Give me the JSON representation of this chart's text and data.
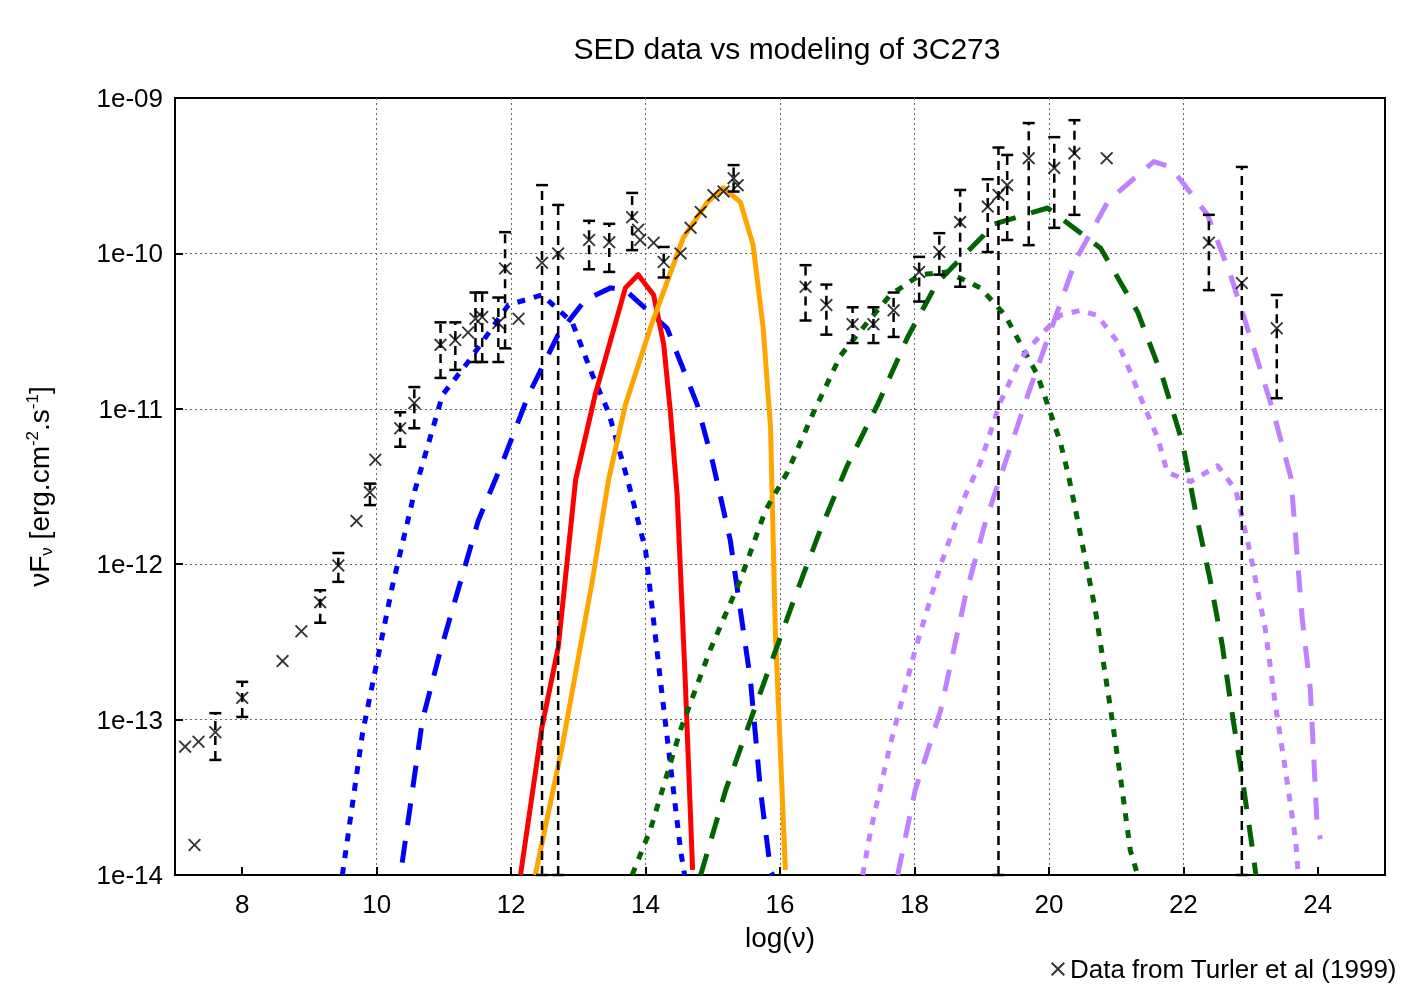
{
  "chart_data": {
    "type": "line",
    "title": "SED data vs modeling of 3C273",
    "xlabel": "log(ν)",
    "ylabel": "νF$_{ν}$ [erg.cm$^{-2}$.s$^{-1}$]",
    "xlim": [
      7,
      25
    ],
    "xticks": [
      8,
      10,
      12,
      14,
      16,
      18,
      20,
      22,
      24
    ],
    "ylim": [
      1e-14,
      1e-09
    ],
    "yticks": [
      {
        "value": 1e-14,
        "label": "1e-14"
      },
      {
        "value": 1e-13,
        "label": "1e-13"
      },
      {
        "value": 1e-12,
        "label": "1e-12"
      },
      {
        "value": 1e-11,
        "label": "1e-11"
      },
      {
        "value": 1e-10,
        "label": "1e-10"
      },
      {
        "value": 1e-09,
        "label": "1e-09"
      }
    ],
    "log": "y",
    "grid": true,
    "legend": "bottom right",
    "series": [
      {
        "type": "scatter",
        "name": "Data from Turler et al (1999)",
        "color": "#000000",
        "marker": "cross",
        "x": [
          7.15,
          7.35,
          7.29,
          7.6,
          8.0,
          8.6,
          8.88,
          9.16,
          9.43,
          9.7,
          9.9,
          9.98,
          10.35,
          10.56,
          10.95,
          11.17,
          11.36,
          11.47,
          11.57,
          11.81,
          11.91,
          12.11,
          12.46,
          12.7,
          13.16,
          13.46,
          13.8,
          13.89,
          13.92,
          14.12,
          14.27,
          14.52,
          14.67,
          14.82,
          15.01,
          15.16,
          15.31,
          15.37,
          16.38,
          16.69,
          17.08,
          17.39,
          17.69,
          18.07,
          18.37,
          18.68,
          19.09,
          19.25,
          19.38,
          19.7,
          20.08,
          20.38,
          20.86,
          22.38,
          22.87,
          23.39
        ],
        "values": [
          6.7e-14,
          7.2e-14,
          1.56e-14,
          8.3e-14,
          1.38e-13,
          2.38e-13,
          3.7e-13,
          5.7e-13,
          9.8e-13,
          1.9e-12,
          2.9e-12,
          4.7e-12,
          7.5e-12,
          1.09e-11,
          2.58e-11,
          2.77e-11,
          3.1e-11,
          3.8e-11,
          3.9e-11,
          3.56e-11,
          8e-11,
          3.8e-11,
          8.7e-11,
          1e-10,
          1.22e-10,
          1.18e-10,
          1.71e-10,
          1.42e-10,
          1.22e-10,
          1.17e-10,
          8.8e-11,
          1e-10,
          1.46e-10,
          1.85e-10,
          2.37e-10,
          2.5e-10,
          3.05e-10,
          2.75e-10,
          6.1e-11,
          4.66e-11,
          3.5e-11,
          3.5e-11,
          4.3e-11,
          7.6e-11,
          1.02e-10,
          1.59e-10,
          2e-10,
          2.38e-10,
          2.75e-10,
          4.1e-10,
          3.55e-10,
          4.4e-10,
          4.1e-10,
          1.17e-10,
          6.45e-11,
          3.3e-11
        ],
        "errors": [
          null,
          null,
          null,
          [
            5.5e-14,
            1.1e-13
          ],
          [
            1.04e-13,
            1.75e-13
          ],
          null,
          null,
          [
            4.2e-13,
            6.8e-13
          ],
          [
            7.7e-13,
            1.18e-12
          ],
          null,
          [
            2.4e-12,
            3.3e-12
          ],
          null,
          [
            5.7e-12,
            9.5e-12
          ],
          [
            7.5e-12,
            1.38e-11
          ],
          [
            1.58e-11,
            3.6e-11
          ],
          [
            1.78e-11,
            3.6e-11
          ],
          null,
          [
            2e-11,
            5.6e-11
          ],
          [
            2e-11,
            5.6e-11
          ],
          [
            2e-11,
            5.2e-11
          ],
          [
            2.45e-11,
            1.37e-10
          ],
          null,
          [
            1e-14,
            2.75e-10
          ],
          [
            1e-14,
            2.05e-10
          ],
          [
            7.9e-11,
            1.62e-10
          ],
          [
            7.6e-11,
            1.55e-10
          ],
          [
            1.05e-10,
            2.45e-10
          ],
          null,
          null,
          null,
          [
            7e-11,
            1.1e-10
          ],
          null,
          null,
          null,
          null,
          null,
          [
            2.5e-10,
            3.7e-10
          ],
          null,
          [
            3.7e-11,
            8.4e-11
          ],
          [
            3e-11,
            6.3e-11
          ],
          [
            2.65e-11,
            4.5e-11
          ],
          [
            2.65e-11,
            4.5e-11
          ],
          [
            2.9e-11,
            5.6e-11
          ],
          [
            4.9e-11,
            9.5e-11
          ],
          [
            7.3e-11,
            1.35e-10
          ],
          [
            6.1e-11,
            2.56e-10
          ],
          [
            1.02e-10,
            3e-10
          ],
          [
            1e-14,
            4.8e-10
          ],
          [
            1.22e-10,
            4.3e-10
          ],
          [
            1.13e-10,
            6.9e-10
          ],
          [
            1.46e-10,
            5.6e-10
          ],
          [
            1.77e-10,
            7.2e-10
          ],
          null,
          [
            5.8e-11,
            1.77e-10
          ],
          [
            1e-14,
            3.6e-10
          ],
          [
            1.17e-11,
            5.4e-11
          ]
        ]
      },
      {
        "color": "#0000ff",
        "line_style": "dotted",
        "x": [
          9.49,
          9.79,
          10.23,
          10.57,
          10.98,
          11.36,
          11.96,
          12.46,
          12.91,
          13.21,
          13.45,
          13.74,
          14.0,
          14.22,
          14.52,
          14.58
        ],
        "values": [
          1e-14,
          8.2e-14,
          7.1e-13,
          3e-12,
          1.23e-11,
          2e-11,
          4.66e-11,
          5.4e-11,
          3.6e-11,
          1.65e-11,
          9.5e-12,
          3.4e-12,
          1.23e-12,
          1.8e-13,
          1.45e-14,
          1e-14
        ]
      },
      {
        "color": "#0000ff",
        "line_style": "dashed",
        "x": [
          10.38,
          10.68,
          10.92,
          11.21,
          11.51,
          11.87,
          12.26,
          12.7,
          13.1,
          13.48,
          13.7,
          14.32,
          14.77,
          15.0,
          15.26,
          15.56,
          15.71,
          15.86,
          15.89
        ],
        "values": [
          1.2e-14,
          9.9e-14,
          2.5e-13,
          6.8e-13,
          1.9e-12,
          4.5e-12,
          1.23e-11,
          3e-11,
          5e-11,
          6e-11,
          5.8e-11,
          3.3e-11,
          1.06e-11,
          4.5e-12,
          1.43e-12,
          1.8e-13,
          3.5e-14,
          1.07e-14,
          1e-14
        ]
      },
      {
        "color": "#ff0000",
        "line_style": "solid",
        "x": [
          12.14,
          12.46,
          12.7,
          12.96,
          13.25,
          13.7,
          13.89,
          14.12,
          14.27,
          14.37,
          14.47,
          14.59,
          14.7
        ],
        "values": [
          1e-14,
          9e-14,
          2.9e-13,
          3.5e-12,
          1.23e-11,
          6e-11,
          7.3e-11,
          5.4e-11,
          2.6e-11,
          9.5e-12,
          2.8e-12,
          1.8e-13,
          1.08e-14
        ]
      },
      {
        "color": "#ffa500",
        "line_style": "solid",
        "x": [
          12.36,
          12.76,
          13.21,
          13.45,
          13.7,
          14.07,
          14.56,
          14.92,
          15.16,
          15.41,
          15.6,
          15.75,
          15.86,
          15.93,
          16.08
        ],
        "values": [
          1e-14,
          6.7e-14,
          7.9e-13,
          3.5e-12,
          1.06e-11,
          3.3e-11,
          1.26e-10,
          2.14e-10,
          2.64e-10,
          2.14e-10,
          1.13e-10,
          3.3e-11,
          7.5e-12,
          3.8e-13,
          1.08e-14
        ]
      },
      {
        "color": "#006400",
        "line_style": "dotted",
        "x": [
          13.8,
          14.07,
          14.52,
          14.96,
          15.41,
          15.78,
          16.11,
          16.5,
          16.9,
          17.3,
          17.64,
          18.09,
          18.49,
          18.98,
          19.35,
          19.58,
          19.83,
          20.02,
          20.17,
          20.29,
          20.4,
          20.69,
          20.92,
          21.07,
          21.21,
          21.32
        ],
        "values": [
          1e-14,
          1.95e-14,
          8.6e-14,
          2.8e-13,
          7.9e-13,
          2.2e-12,
          3.9e-12,
          9.5e-12,
          2.2e-11,
          3.6e-11,
          5.4e-11,
          7.3e-11,
          7.6e-11,
          6e-11,
          4e-11,
          2.6e-11,
          1.65e-11,
          9.5e-12,
          6.1e-12,
          3.75e-12,
          2.2e-12,
          5.1e-13,
          1.15e-13,
          4.1e-14,
          1.45e-14,
          1e-14
        ]
      },
      {
        "color": "#006400",
        "line_style": "dashed",
        "x": [
          14.82,
          15.19,
          15.56,
          16.23,
          16.6,
          17.0,
          17.45,
          17.9,
          18.34,
          19.03,
          19.13,
          19.98,
          20.77,
          21.32,
          21.69,
          21.99,
          22.18,
          22.4,
          22.58,
          22.73,
          22.88,
          23.03,
          23.08
        ],
        "values": [
          1e-14,
          3.5e-14,
          9.9e-14,
          6.3e-13,
          1.66e-12,
          4.3e-12,
          1.06e-11,
          2.9e-11,
          6.5e-11,
          1.31e-10,
          1.52e-10,
          1.96e-10,
          1.08e-10,
          4.2e-11,
          1.6e-11,
          6e-12,
          2.2e-12,
          7.9e-13,
          3e-13,
          1.07e-13,
          4.1e-14,
          1.45e-14,
          1e-14
        ]
      },
      {
        "color": "#c080ff",
        "line_style": "dotted",
        "x": [
          17.23,
          17.35,
          17.64,
          18.01,
          18.39,
          18.76,
          18.98,
          19.28,
          19.58,
          19.88,
          20.17,
          20.47,
          20.72,
          21.02,
          21.21,
          21.41,
          21.62,
          21.76,
          22.11,
          22.51,
          22.78,
          23.0,
          23.22,
          23.37,
          23.52,
          23.67,
          23.71
        ],
        "values": [
          1e-14,
          1.95e-14,
          6.9e-14,
          2.8e-13,
          9.9e-13,
          2.8e-12,
          4.5e-12,
          1.11e-11,
          2.1e-11,
          3e-11,
          4e-11,
          4.3e-11,
          4e-11,
          2.7e-11,
          1.73e-11,
          1.06e-11,
          6.5e-12,
          3.9e-12,
          3.4e-12,
          4.3e-12,
          3e-12,
          1.15e-12,
          3.8e-13,
          1.24e-13,
          4.7e-14,
          1.68e-14,
          1e-14
        ]
      },
      {
        "color": "#c080ff",
        "line_style": "dashed",
        "x": [
          17.75,
          18.01,
          18.39,
          18.76,
          19.06,
          19.35,
          19.7,
          20.05,
          20.4,
          20.89,
          21.56,
          21.81,
          22.36,
          22.7,
          23.03,
          23.34,
          23.6,
          23.77,
          23.89,
          23.99,
          24.04
        ],
        "values": [
          1e-14,
          3.5e-14,
          1.15e-13,
          6.3e-13,
          1.9e-12,
          4.5e-12,
          1.28e-11,
          3.4e-11,
          9.1e-11,
          2.2e-10,
          3.9e-10,
          3.6e-10,
          1.77e-10,
          7.3e-11,
          2.6e-11,
          9.5e-12,
          3.6e-12,
          4.4e-13,
          1.55e-13,
          2.1e-14,
          1.7e-14
        ]
      }
    ]
  }
}
